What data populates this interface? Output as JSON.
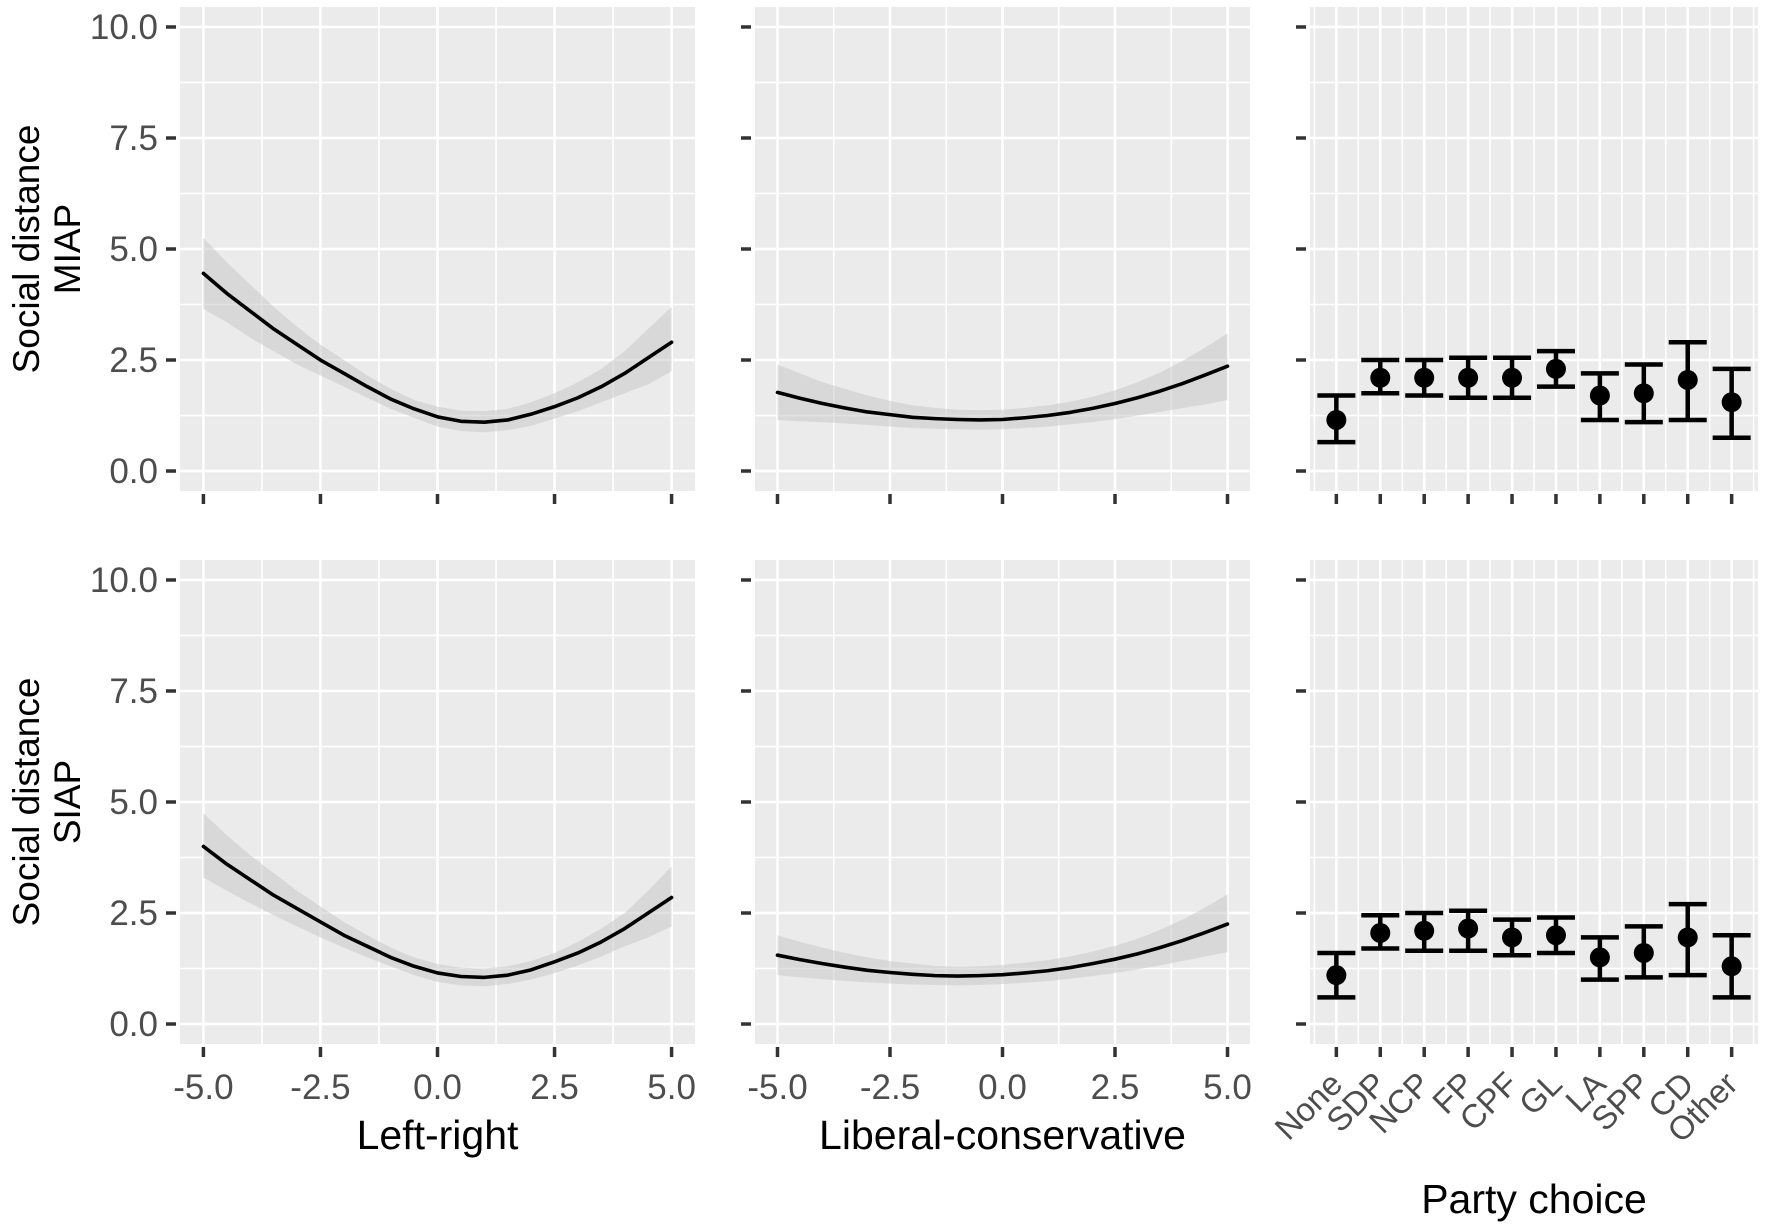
{
  "figure": {
    "description": "Faceted regression plot: predicted social distance by ideology and party choice",
    "background": "#ffffff"
  },
  "colors": {
    "panel_bg": "#ebebeb",
    "grid": "#ffffff",
    "ribbon": "#c9c9c9",
    "line": "#000000",
    "point": "#000000",
    "tick_mark": "#333333",
    "tick_label": "#4d4d4d",
    "axis_title": "#000000"
  },
  "chart_data": {
    "type": "line",
    "subtype": "facet_grid_2x3_with_pointrange",
    "grid": "on",
    "legend": "none",
    "rows": [
      {
        "line1": "Social distance",
        "line2": "MIAP"
      },
      {
        "line1": "Social distance",
        "line2": "SIAP"
      }
    ],
    "y_axis": {
      "tick_values": [
        0,
        2.5,
        5,
        7.5,
        10
      ],
      "tick_labels": [
        "0.0",
        "2.5",
        "5.0",
        "7.5",
        "10.0"
      ],
      "minor_values": [
        1.25,
        3.75,
        6.25,
        8.75
      ],
      "range": [
        -0.45,
        10.45
      ]
    },
    "columns": [
      {
        "key": "left_right",
        "type": "line",
        "xlabel": "Left-right",
        "tick_values": [
          -5,
          -2.5,
          0,
          2.5,
          5
        ],
        "tick_labels": [
          "-5.0",
          "-2.5",
          "0.0",
          "2.5",
          "5.0"
        ],
        "minor_values": [
          -3.75,
          -1.25,
          1.25,
          3.75
        ],
        "range": [
          -5.5,
          5.5
        ]
      },
      {
        "key": "liberal_conservative",
        "type": "line",
        "xlabel": "Liberal-conservative",
        "tick_values": [
          -5,
          -2.5,
          0,
          2.5,
          5
        ],
        "tick_labels": [
          "-5.0",
          "-2.5",
          "0.0",
          "2.5",
          "5.0"
        ],
        "minor_values": [
          -3.75,
          -1.25,
          1.25,
          3.75
        ],
        "range": [
          -5.5,
          5.5
        ]
      },
      {
        "key": "party",
        "type": "pointrange",
        "xlabel": "Party choice",
        "categories": [
          "None",
          "SDP",
          "NCP",
          "FP",
          "CPF",
          "GL",
          "LA",
          "SPP",
          "CD",
          "Other"
        ],
        "range": [
          0.4,
          10.6
        ]
      }
    ],
    "cells": [
      [
        {
          "x": [
            -5,
            -4.5,
            -4,
            -3.5,
            -3,
            -2.5,
            -2,
            -1.5,
            -1,
            -0.5,
            0,
            0.5,
            1,
            1.5,
            2,
            2.5,
            3,
            3.5,
            4,
            4.5,
            5
          ],
          "y": [
            4.45,
            4.0,
            3.6,
            3.2,
            2.85,
            2.5,
            2.2,
            1.9,
            1.62,
            1.4,
            1.22,
            1.12,
            1.1,
            1.15,
            1.28,
            1.45,
            1.65,
            1.9,
            2.2,
            2.55,
            2.9
          ],
          "upper": [
            5.25,
            4.7,
            4.2,
            3.7,
            3.25,
            2.85,
            2.5,
            2.15,
            1.85,
            1.6,
            1.45,
            1.36,
            1.35,
            1.4,
            1.55,
            1.75,
            2.0,
            2.3,
            2.7,
            3.2,
            3.7
          ],
          "lower": [
            3.65,
            3.35,
            3.0,
            2.7,
            2.4,
            2.15,
            1.9,
            1.65,
            1.4,
            1.2,
            1.0,
            0.9,
            0.87,
            0.92,
            1.02,
            1.18,
            1.35,
            1.55,
            1.75,
            1.95,
            2.25
          ]
        },
        {
          "x": [
            -5,
            -4.5,
            -4,
            -3.5,
            -3,
            -2.5,
            -2,
            -1.5,
            -1,
            -0.5,
            0,
            0.5,
            1,
            1.5,
            2,
            2.5,
            3,
            3.5,
            4,
            4.5,
            5
          ],
          "y": [
            1.77,
            1.64,
            1.52,
            1.42,
            1.33,
            1.27,
            1.21,
            1.18,
            1.16,
            1.15,
            1.16,
            1.2,
            1.25,
            1.32,
            1.41,
            1.52,
            1.65,
            1.8,
            1.97,
            2.16,
            2.36
          ],
          "upper": [
            2.4,
            2.2,
            2.0,
            1.85,
            1.7,
            1.58,
            1.48,
            1.42,
            1.38,
            1.37,
            1.38,
            1.42,
            1.48,
            1.56,
            1.67,
            1.82,
            2.0,
            2.22,
            2.48,
            2.78,
            3.1
          ],
          "lower": [
            1.15,
            1.12,
            1.1,
            1.07,
            1.04,
            1.0,
            0.97,
            0.95,
            0.94,
            0.93,
            0.94,
            0.97,
            1.0,
            1.05,
            1.1,
            1.17,
            1.25,
            1.33,
            1.42,
            1.5,
            1.6
          ]
        },
        {
          "est": [
            1.15,
            2.1,
            2.1,
            2.1,
            2.1,
            2.3,
            1.7,
            1.75,
            2.05,
            1.55
          ],
          "lower": [
            0.65,
            1.75,
            1.7,
            1.65,
            1.65,
            1.9,
            1.15,
            1.1,
            1.15,
            0.75
          ],
          "upper": [
            1.7,
            2.5,
            2.5,
            2.55,
            2.55,
            2.7,
            2.2,
            2.4,
            2.9,
            2.3
          ]
        }
      ],
      [
        {
          "x": [
            -5,
            -4.5,
            -4,
            -3.5,
            -3,
            -2.5,
            -2,
            -1.5,
            -1,
            -0.5,
            0,
            0.5,
            1,
            1.5,
            2,
            2.5,
            3,
            3.5,
            4,
            4.5,
            5
          ],
          "y": [
            4.0,
            3.6,
            3.25,
            2.9,
            2.6,
            2.3,
            2.0,
            1.75,
            1.5,
            1.3,
            1.15,
            1.07,
            1.05,
            1.1,
            1.22,
            1.4,
            1.6,
            1.85,
            2.15,
            2.5,
            2.85
          ],
          "upper": [
            4.75,
            4.25,
            3.8,
            3.4,
            3.0,
            2.65,
            2.3,
            2.0,
            1.72,
            1.5,
            1.35,
            1.27,
            1.25,
            1.3,
            1.42,
            1.6,
            1.85,
            2.15,
            2.5,
            3.0,
            3.55
          ],
          "lower": [
            3.3,
            3.0,
            2.72,
            2.45,
            2.2,
            1.95,
            1.72,
            1.5,
            1.3,
            1.1,
            0.95,
            0.87,
            0.85,
            0.9,
            1.0,
            1.15,
            1.32,
            1.52,
            1.75,
            1.95,
            2.2
          ]
        },
        {
          "x": [
            -5,
            -4.5,
            -4,
            -3.5,
            -3,
            -2.5,
            -2,
            -1.5,
            -1,
            -0.5,
            0,
            0.5,
            1,
            1.5,
            2,
            2.5,
            3,
            3.5,
            4,
            4.5,
            5
          ],
          "y": [
            1.55,
            1.45,
            1.36,
            1.28,
            1.21,
            1.16,
            1.12,
            1.09,
            1.08,
            1.09,
            1.11,
            1.15,
            1.2,
            1.27,
            1.36,
            1.46,
            1.58,
            1.72,
            1.88,
            2.06,
            2.25
          ],
          "upper": [
            2.0,
            1.85,
            1.72,
            1.6,
            1.5,
            1.42,
            1.36,
            1.31,
            1.29,
            1.3,
            1.33,
            1.38,
            1.44,
            1.52,
            1.63,
            1.76,
            1.92,
            2.12,
            2.35,
            2.62,
            2.92
          ],
          "lower": [
            1.1,
            1.05,
            1.01,
            0.97,
            0.94,
            0.91,
            0.89,
            0.88,
            0.87,
            0.88,
            0.9,
            0.93,
            0.97,
            1.02,
            1.08,
            1.15,
            1.23,
            1.32,
            1.42,
            1.52,
            1.62
          ]
        },
        {
          "est": [
            1.1,
            2.05,
            2.1,
            2.15,
            1.95,
            2.0,
            1.5,
            1.6,
            1.95,
            1.3
          ],
          "lower": [
            0.6,
            1.7,
            1.65,
            1.65,
            1.55,
            1.6,
            1.0,
            1.05,
            1.1,
            0.6
          ],
          "upper": [
            1.6,
            2.45,
            2.5,
            2.55,
            2.35,
            2.4,
            1.95,
            2.2,
            2.7,
            2.0
          ]
        }
      ]
    ]
  }
}
